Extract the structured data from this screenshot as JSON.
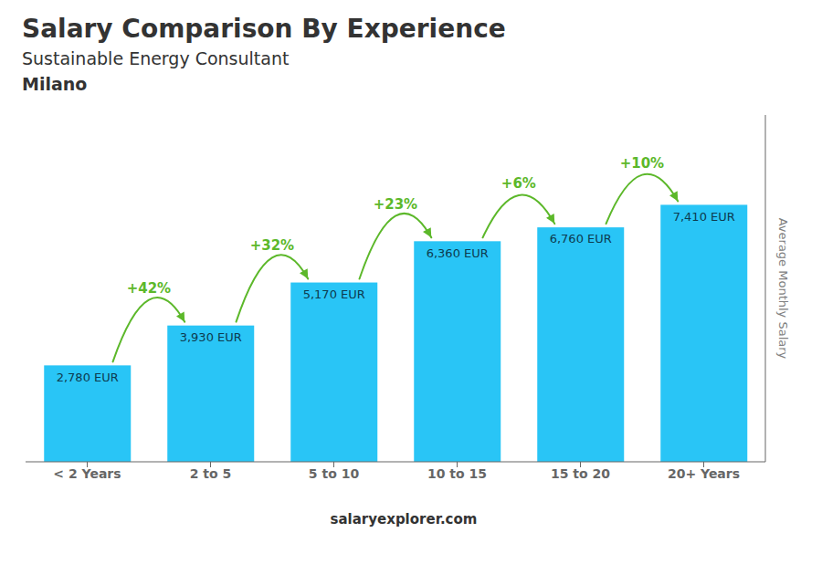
{
  "chart_data": {
    "type": "bar",
    "title": "Salary Comparison By Experience",
    "subtitle": "Sustainable Energy Consultant",
    "annotations": [
      {
        "text": "Milano"
      },
      {
        "text": "salaryexplorer.com"
      },
      {
        "text": "+42%",
        "from": "< 2 Years",
        "to": "2 to 5",
        "color": "#5cb82a"
      },
      {
        "text": "+32%",
        "from": "2 to 5",
        "to": "5 to 10",
        "color": "#5cb82a"
      },
      {
        "text": "+23%",
        "from": "5 to 10",
        "to": "10 to 15",
        "color": "#5cb82a"
      },
      {
        "text": "+6%",
        "from": "10 to 15",
        "to": "15 to 20",
        "color": "#5cb82a"
      },
      {
        "text": "+10%",
        "from": "15 to 20",
        "to": "20+ Years",
        "color": "#5cb82a"
      }
    ],
    "categories": [
      "< 2 Years",
      "2 to 5",
      "5 to 10",
      "10 to 15",
      "15 to 20",
      "20+ Years"
    ],
    "values": [
      2780,
      3930,
      5170,
      6360,
      6760,
      7410
    ],
    "value_labels": [
      "2,780 EUR",
      "3,930 EUR",
      "5,170 EUR",
      "6,360 EUR",
      "6,760 EUR",
      "7,410 EUR"
    ],
    "data_labels": true,
    "color": "#29c5f6",
    "ylabel": "Average Monthly Salary",
    "ylim": [
      0,
      10000
    ],
    "yticks": [],
    "grid": false,
    "tick_labels": "x"
  }
}
